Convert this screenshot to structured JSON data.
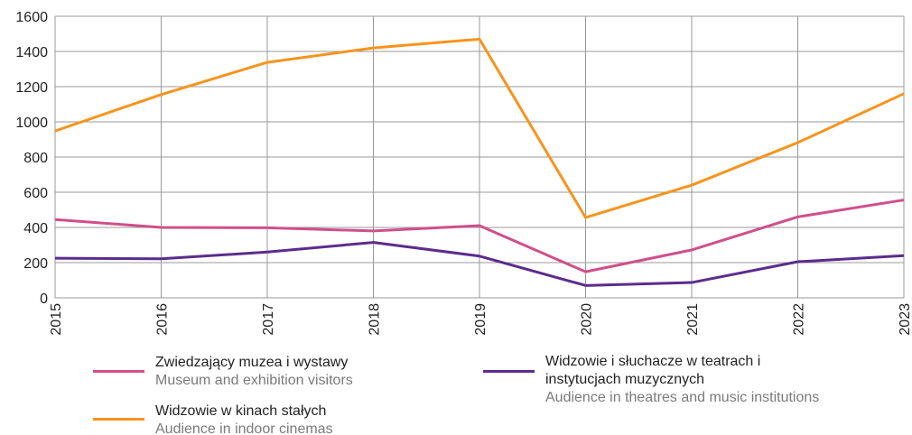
{
  "chart_data": {
    "type": "line",
    "categories": [
      "2015",
      "2016",
      "2017",
      "2018",
      "2019",
      "2020",
      "2021",
      "2022",
      "2023"
    ],
    "series": [
      {
        "name": "Zwiedzający muzea i wystawy",
        "name_en": "Museum and exhibition visitors",
        "color": "#d04f8a",
        "values": [
          445,
          400,
          398,
          380,
          410,
          148,
          272,
          460,
          556
        ]
      },
      {
        "name": "Widzowie w kinach stałych",
        "name_en": "Audience in indoor cinemas",
        "color": "#f7941d",
        "values": [
          948,
          1155,
          1338,
          1420,
          1470,
          456,
          640,
          882,
          1160
        ]
      },
      {
        "name": "Widzowie i słuchacze w teatrach i instytucjach muzycznych",
        "name_en": "Audience in theatres and music institutions",
        "color": "#5b2c8d",
        "values": [
          225,
          222,
          260,
          315,
          237,
          70,
          87,
          205,
          240
        ]
      }
    ],
    "ylim": [
      0,
      1600
    ],
    "yticks": [
      0,
      200,
      400,
      600,
      800,
      1000,
      1200,
      1400,
      1600
    ],
    "grid": true
  }
}
